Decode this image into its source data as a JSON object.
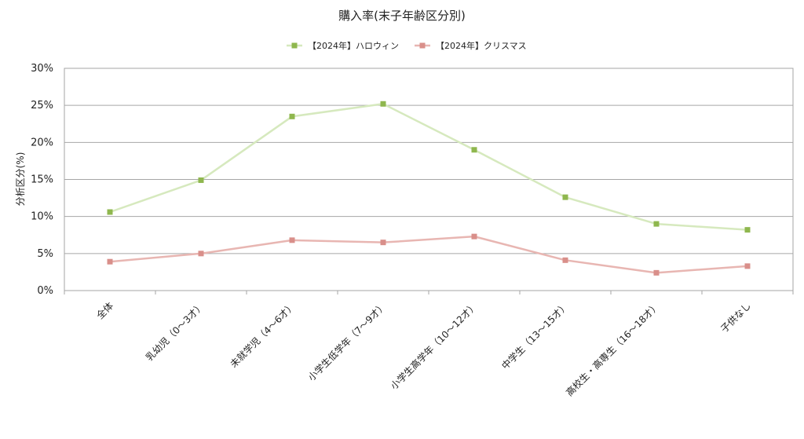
{
  "chart_data": {
    "type": "line",
    "title": "購入率(末子年齢区分別)",
    "ylabel": "分析区分(%)",
    "xlabel": "",
    "ylim": [
      0,
      30
    ],
    "yticks": [
      0,
      5,
      10,
      15,
      20,
      25,
      30
    ],
    "ytick_labels": [
      "0%",
      "5%",
      "10%",
      "15%",
      "20%",
      "25%",
      "30%"
    ],
    "grid": true,
    "legend_position": "top",
    "categories": [
      "全体",
      "乳幼児（0～3才）",
      "未就学児（4～6才）",
      "小学生低学年（7～9才）",
      "小学生高学年（10～12才）",
      "中学生（13～15才）",
      "高校生・高専生（16～18才）",
      "子供なし"
    ],
    "series": [
      {
        "name": "【2024年】ハロウィン",
        "values": [
          10.6,
          14.9,
          23.5,
          25.2,
          19.0,
          12.6,
          9.0,
          8.2
        ],
        "line_color": "#d6e9be",
        "marker_color": "#8fb74e"
      },
      {
        "name": "【2024年】クリスマス",
        "values": [
          3.9,
          5.0,
          6.8,
          6.5,
          7.3,
          4.1,
          2.4,
          3.3
        ],
        "line_color": "#e8b6b2",
        "marker_color": "#d98f8a"
      }
    ]
  }
}
